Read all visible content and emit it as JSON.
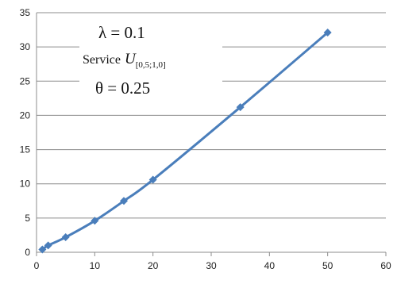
{
  "chart_data": {
    "type": "line",
    "title": "",
    "xlabel": "",
    "ylabel": "",
    "xlim": [
      0,
      60
    ],
    "ylim": [
      0,
      35
    ],
    "x_ticks": [
      0,
      10,
      20,
      30,
      40,
      50,
      60
    ],
    "y_ticks": [
      0,
      5,
      10,
      15,
      20,
      25,
      30,
      35
    ],
    "grid": "horizontal",
    "legend": "none",
    "series": [
      {
        "name": "",
        "color": "#4a7ebb",
        "marker": "diamond",
        "points": [
          {
            "x": 1,
            "y": 0.4
          },
          {
            "x": 2,
            "y": 1.0
          },
          {
            "x": 5,
            "y": 2.2
          },
          {
            "x": 10,
            "y": 4.6
          },
          {
            "x": 15,
            "y": 7.5
          },
          {
            "x": 20,
            "y": 10.6
          },
          {
            "x": 35,
            "y": 21.2
          },
          {
            "x": 50,
            "y": 32.1
          }
        ]
      }
    ],
    "annotations": {
      "lambda": "λ = 0.1",
      "service_prefix": "Service",
      "service_symbol": "U",
      "service_subscript": "[0,5;1,0]",
      "theta": "θ = 0.25"
    }
  }
}
